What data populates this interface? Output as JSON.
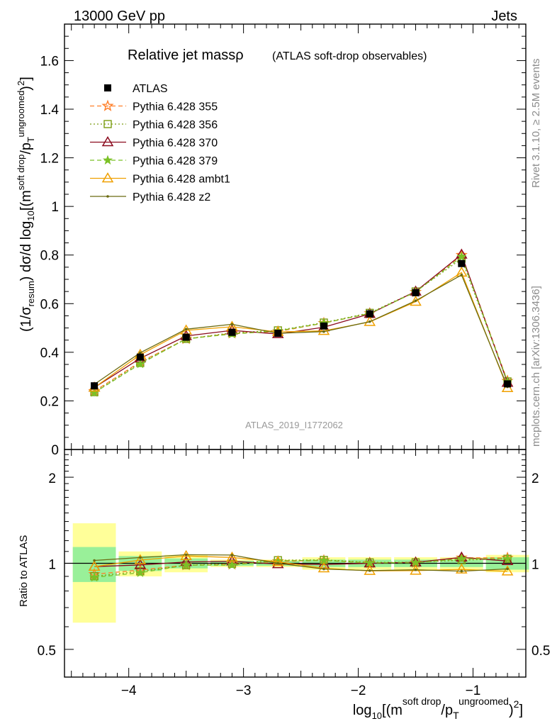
{
  "header": {
    "left": "13000 GeV pp",
    "right": "Jets"
  },
  "side_labels": {
    "rivet": "Rivet 3.1.10, ≥ 2.5M events",
    "mcplots": "mcplots.cern.ch [arXiv:1306.3436]"
  },
  "chart_data": {
    "type": "line",
    "title": "Relative jet massρ",
    "subtitle": "(ATLAS soft-drop observables)",
    "watermark": "ATLAS_2019_I1772062",
    "xlabel": {
      "prefix": "log",
      "sub": "10",
      "open": "[(m",
      "sup1": "soft drop",
      "mid": "/p",
      "sub2": "T",
      "sup2": "ungroomed",
      "close": ")",
      "sup3": "2",
      "end": "]"
    },
    "ylabel": {
      "a": "(1/σ",
      "a_sub": "resum",
      "b": ") dσ/d log",
      "b_sub": "10",
      "c": "[(m",
      "c_sup": "soft drop",
      "d": "/p",
      "d_sub": "T",
      "d_sup": "ungroomed",
      "e": ")",
      "e_sup": "2",
      "f": "]"
    },
    "ratio_ylabel": "Ratio to ATLAS",
    "xlim": [
      -4.56,
      -0.54
    ],
    "ylim": [
      0,
      1.75
    ],
    "ratio_ylim": [
      0.4,
      2.5
    ],
    "x_ticks": [
      -4,
      -3,
      -2,
      -1
    ],
    "x_tick_labels": [
      "−4",
      "−3",
      "−2",
      "−1"
    ],
    "y_ticks": [
      0,
      0.2,
      0.4,
      0.6,
      0.8,
      1,
      1.2,
      1.4,
      1.6
    ],
    "y_tick_labels": [
      "0",
      "0.2",
      "0.4",
      "0.6",
      "0.8",
      "1",
      "1.2",
      "1.4",
      "1.6"
    ],
    "ratio_ticks": [
      0.5,
      1,
      2
    ],
    "ratio_tick_labels": [
      "0.5",
      "1",
      "2"
    ],
    "x": [
      -4.3,
      -3.9,
      -3.5,
      -3.1,
      -2.7,
      -2.3,
      -1.9,
      -1.5,
      -1.1,
      -0.7
    ],
    "bin_edges": [
      -4.5,
      -4.1,
      -3.7,
      -3.3,
      -2.9,
      -2.5,
      -2.1,
      -1.7,
      -1.3,
      -0.9,
      -0.5
    ],
    "data": {
      "name": "ATLAS",
      "values": [
        0.262,
        0.38,
        0.462,
        0.482,
        0.478,
        0.508,
        0.558,
        0.645,
        0.765,
        0.27
      ],
      "errors": [
        0.01,
        0.01,
        0.01,
        0.008,
        0.008,
        0.008,
        0.01,
        0.01,
        0.012,
        0.01
      ],
      "ratio_band_inner": [
        0.14,
        0.06,
        0.04,
        0.02,
        0.02,
        0.03,
        0.03,
        0.03,
        0.03,
        0.05
      ],
      "ratio_band_outer": [
        0.38,
        0.1,
        0.07,
        0.03,
        0.03,
        0.05,
        0.05,
        0.05,
        0.05,
        0.07
      ]
    },
    "series": [
      {
        "name": "Pythia 6.428 355",
        "color": "#ff7f2a",
        "marker": "star-open",
        "dash": "6,4",
        "values": [
          0.24,
          0.36,
          0.455,
          0.478,
          0.485,
          0.52,
          0.56,
          0.648,
          0.8,
          0.282
        ]
      },
      {
        "name": "Pythia 6.428 356",
        "color": "#7b9c11",
        "marker": "square-open",
        "dash": "2,3",
        "values": [
          0.236,
          0.356,
          0.455,
          0.48,
          0.49,
          0.522,
          0.562,
          0.65,
          0.785,
          0.28
        ]
      },
      {
        "name": "Pythia 6.428 370",
        "color": "#8b0a1e",
        "marker": "triangle-open",
        "dash": "",
        "values": [
          0.255,
          0.375,
          0.467,
          0.49,
          0.475,
          0.503,
          0.558,
          0.65,
          0.802,
          0.275
        ]
      },
      {
        "name": "Pythia 6.428 379",
        "color": "#7bc126",
        "marker": "star-filled",
        "dash": "6,4",
        "values": [
          0.234,
          0.352,
          0.455,
          0.475,
          0.488,
          0.52,
          0.56,
          0.648,
          0.793,
          0.28
        ]
      },
      {
        "name": "Pythia 6.428 ambt1",
        "color": "#f0a000",
        "marker": "triangle-open",
        "dash": "",
        "values": [
          0.255,
          0.39,
          0.49,
          0.505,
          0.484,
          0.488,
          0.525,
          0.608,
          0.728,
          0.253
        ]
      },
      {
        "name": "Pythia 6.428 z2",
        "color": "#6b6b10",
        "marker": "dot",
        "dash": "",
        "values": [
          0.268,
          0.398,
          0.495,
          0.515,
          0.478,
          0.485,
          0.526,
          0.612,
          0.718,
          0.258
        ]
      }
    ]
  }
}
